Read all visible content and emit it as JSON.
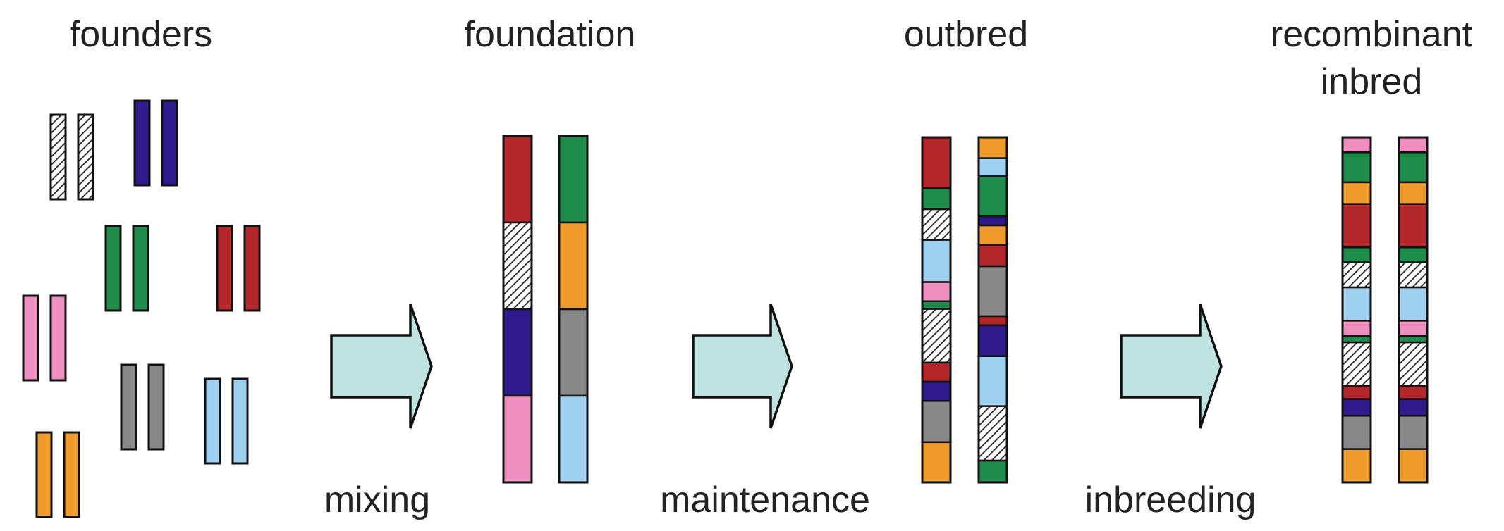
{
  "stages": [
    {
      "label": "founders"
    },
    {
      "label": "foundation"
    },
    {
      "label": "outbred"
    },
    {
      "label_line1": "recombinant",
      "label_line2": "inbred"
    }
  ],
  "steps": [
    {
      "label": "mixing"
    },
    {
      "label": "maintenance"
    },
    {
      "label": "inbreeding"
    }
  ],
  "colors": {
    "hatched": "hatch",
    "red": "#b3262b",
    "green": "#1e8c4a",
    "orange": "#f09c2c",
    "purple": "#2e1a8c",
    "gray": "#888888",
    "lightblue": "#9fd0ef",
    "pink": "#ee8fc0",
    "arrow_fill": "#bfe3e1"
  },
  "founder_pairs": [
    "hatched",
    "purple",
    "green",
    "red",
    "pink",
    "gray",
    "lightblue",
    "orange"
  ],
  "foundation": {
    "left": [
      [
        "red",
        1
      ],
      [
        "hatched",
        1
      ],
      [
        "purple",
        1
      ],
      [
        "pink",
        1
      ]
    ],
    "right": [
      [
        "green",
        1
      ],
      [
        "orange",
        1
      ],
      [
        "gray",
        1
      ],
      [
        "lightblue",
        1
      ]
    ]
  },
  "outbred": {
    "left": [
      [
        "red",
        53
      ],
      [
        "green",
        22
      ],
      [
        "hatched",
        32
      ],
      [
        "lightblue",
        44
      ],
      [
        "pink",
        20
      ],
      [
        "green",
        8
      ],
      [
        "hatched",
        56
      ],
      [
        "red",
        20
      ],
      [
        "purple",
        20
      ],
      [
        "gray",
        43
      ],
      [
        "orange",
        42
      ]
    ],
    "right": [
      [
        "orange",
        23
      ],
      [
        "lightblue",
        20
      ],
      [
        "green",
        44
      ],
      [
        "purple",
        10
      ],
      [
        "orange",
        22
      ],
      [
        "red",
        23
      ],
      [
        "gray",
        55
      ],
      [
        "red",
        10
      ],
      [
        "purple",
        34
      ],
      [
        "lightblue",
        55
      ],
      [
        "hatched",
        60
      ],
      [
        "green",
        24
      ]
    ]
  },
  "recombinant": [
    [
      "pink",
      18
    ],
    [
      "green",
      36
    ],
    [
      "orange",
      26
    ],
    [
      "red",
      52
    ],
    [
      "green",
      18
    ],
    [
      "hatched",
      30
    ],
    [
      "lightblue",
      40
    ],
    [
      "pink",
      18
    ],
    [
      "green",
      8
    ],
    [
      "hatched",
      52
    ],
    [
      "red",
      16
    ],
    [
      "purple",
      20
    ],
    [
      "gray",
      40
    ],
    [
      "orange",
      40
    ]
  ]
}
